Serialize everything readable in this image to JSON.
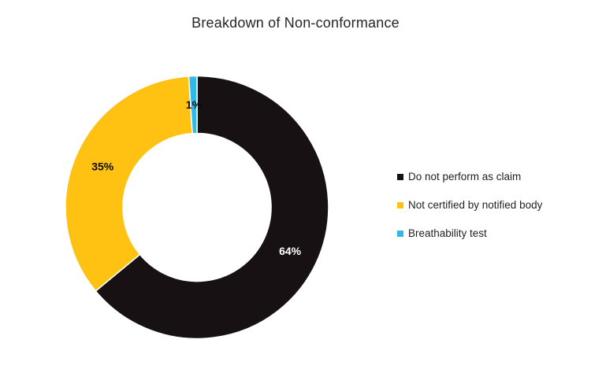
{
  "chart_data": {
    "type": "pie",
    "subtype": "donut",
    "title": "Breakdown of Non-conformance",
    "series": [
      {
        "name": "Do not perform as claim",
        "value": 64,
        "label": "64%",
        "color": "#171114",
        "label_color": "#ffffff"
      },
      {
        "name": "Not certified by notified body",
        "value": 35,
        "label": "35%",
        "color": "#FFC212",
        "label_color": "#0d0d0d"
      },
      {
        "name": "Breathability test",
        "value": 1,
        "label": "1%",
        "color": "#2FB9E8",
        "label_color": "#0d0d0d"
      }
    ],
    "start_angle_deg": 0,
    "direction": "clockwise",
    "donut_hole_ratio": 0.56,
    "slice_border_color": "#ffffff",
    "legend_position": "right",
    "legend_marker_shape": "square"
  }
}
